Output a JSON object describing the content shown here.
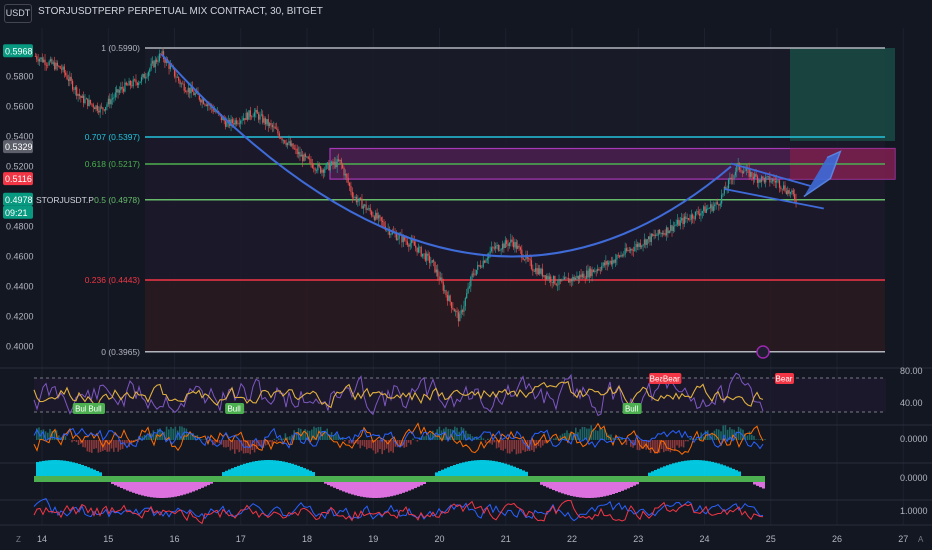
{
  "header": {
    "currency_badge": "USDT",
    "title": "STORJUSDTPERP PERPETUAL MIX CONTRACT, 30, BITGET"
  },
  "price_labels": {
    "high": "0.5968",
    "gray": "0.5329",
    "red": "0.5116",
    "current": "0.4978",
    "countdown": "09:21",
    "symbol": "STORJUSDT.P"
  },
  "colors": {
    "background": "#131722",
    "up": "#26a69a",
    "down": "#ef5350",
    "fib_1": "#b2b5be",
    "fib_707": "#22c3dc",
    "fib_618": "#4caf50",
    "fib_5": "#66bb6a",
    "fib_236": "#f23645",
    "fib_0": "#b2b5be",
    "curve": "#3f6bd9",
    "zone": "#9c27b0"
  },
  "chart_data": {
    "type": "candlestick",
    "price_axis": {
      "ylim": [
        0.3965,
        0.6035
      ],
      "ticks": [
        "0.5800",
        "0.5600",
        "0.5400",
        "0.5200",
        "0.4800",
        "0.4600",
        "0.4400",
        "0.4200",
        "0.4000"
      ]
    },
    "time_axis": {
      "ticks": [
        "14",
        "15",
        "16",
        "17",
        "18",
        "19",
        "20",
        "21",
        "22",
        "23",
        "24",
        "25",
        "26",
        "27"
      ]
    },
    "fib_levels": [
      {
        "ratio": "1",
        "value": 0.599,
        "label": "1 (0.5990)"
      },
      {
        "ratio": "0.707",
        "value": 0.5397,
        "label": "0.707 (0.5397)"
      },
      {
        "ratio": "0.618",
        "value": 0.5217,
        "label": "0.618 (0.5217)"
      },
      {
        "ratio": "0.5",
        "value": 0.4978,
        "label": "0.5 (0.4978)"
      },
      {
        "ratio": "0.236",
        "value": 0.4443,
        "label": "0.236 (0.4443)"
      },
      {
        "ratio": "0",
        "value": 0.3965,
        "label": "0 (0.3965)"
      }
    ],
    "price_path": [
      [
        13.9,
        0.5935
      ],
      [
        14.3,
        0.585
      ],
      [
        14.6,
        0.565
      ],
      [
        14.9,
        0.558
      ],
      [
        15.2,
        0.572
      ],
      [
        15.5,
        0.578
      ],
      [
        15.8,
        0.595
      ],
      [
        16.1,
        0.575
      ],
      [
        16.5,
        0.562
      ],
      [
        16.8,
        0.548
      ],
      [
        17.2,
        0.556
      ],
      [
        17.5,
        0.545
      ],
      [
        17.9,
        0.527
      ],
      [
        18.2,
        0.518
      ],
      [
        18.5,
        0.523
      ],
      [
        18.7,
        0.5
      ],
      [
        19.0,
        0.488
      ],
      [
        19.3,
        0.475
      ],
      [
        19.6,
        0.468
      ],
      [
        19.9,
        0.455
      ],
      [
        20.1,
        0.435
      ],
      [
        20.3,
        0.418
      ],
      [
        20.5,
        0.448
      ],
      [
        20.8,
        0.465
      ],
      [
        21.1,
        0.47
      ],
      [
        21.4,
        0.453
      ],
      [
        21.8,
        0.442
      ],
      [
        22.2,
        0.448
      ],
      [
        22.6,
        0.457
      ],
      [
        23.0,
        0.468
      ],
      [
        23.4,
        0.477
      ],
      [
        23.8,
        0.487
      ],
      [
        24.2,
        0.495
      ],
      [
        24.5,
        0.52
      ],
      [
        24.8,
        0.512
      ],
      [
        25.1,
        0.51
      ],
      [
        25.4,
        0.4978
      ]
    ],
    "rsi_panel": {
      "axis_labels": [
        "80.00",
        "40.00"
      ],
      "signals": [
        {
          "label": "Bull",
          "day": 14.6
        },
        {
          "label": "Bull",
          "day": 14.8
        },
        {
          "label": "Bull",
          "day": 16.9
        },
        {
          "label": "Bull",
          "day": 22.9
        },
        {
          "label": "Bear",
          "day": 23.3
        },
        {
          "label": "Bear",
          "day": 23.5
        },
        {
          "label": "Bear",
          "day": 25.2
        }
      ]
    },
    "osc_axis_labels": [
      "0.0000",
      "0.0000",
      "1.0000"
    ]
  }
}
